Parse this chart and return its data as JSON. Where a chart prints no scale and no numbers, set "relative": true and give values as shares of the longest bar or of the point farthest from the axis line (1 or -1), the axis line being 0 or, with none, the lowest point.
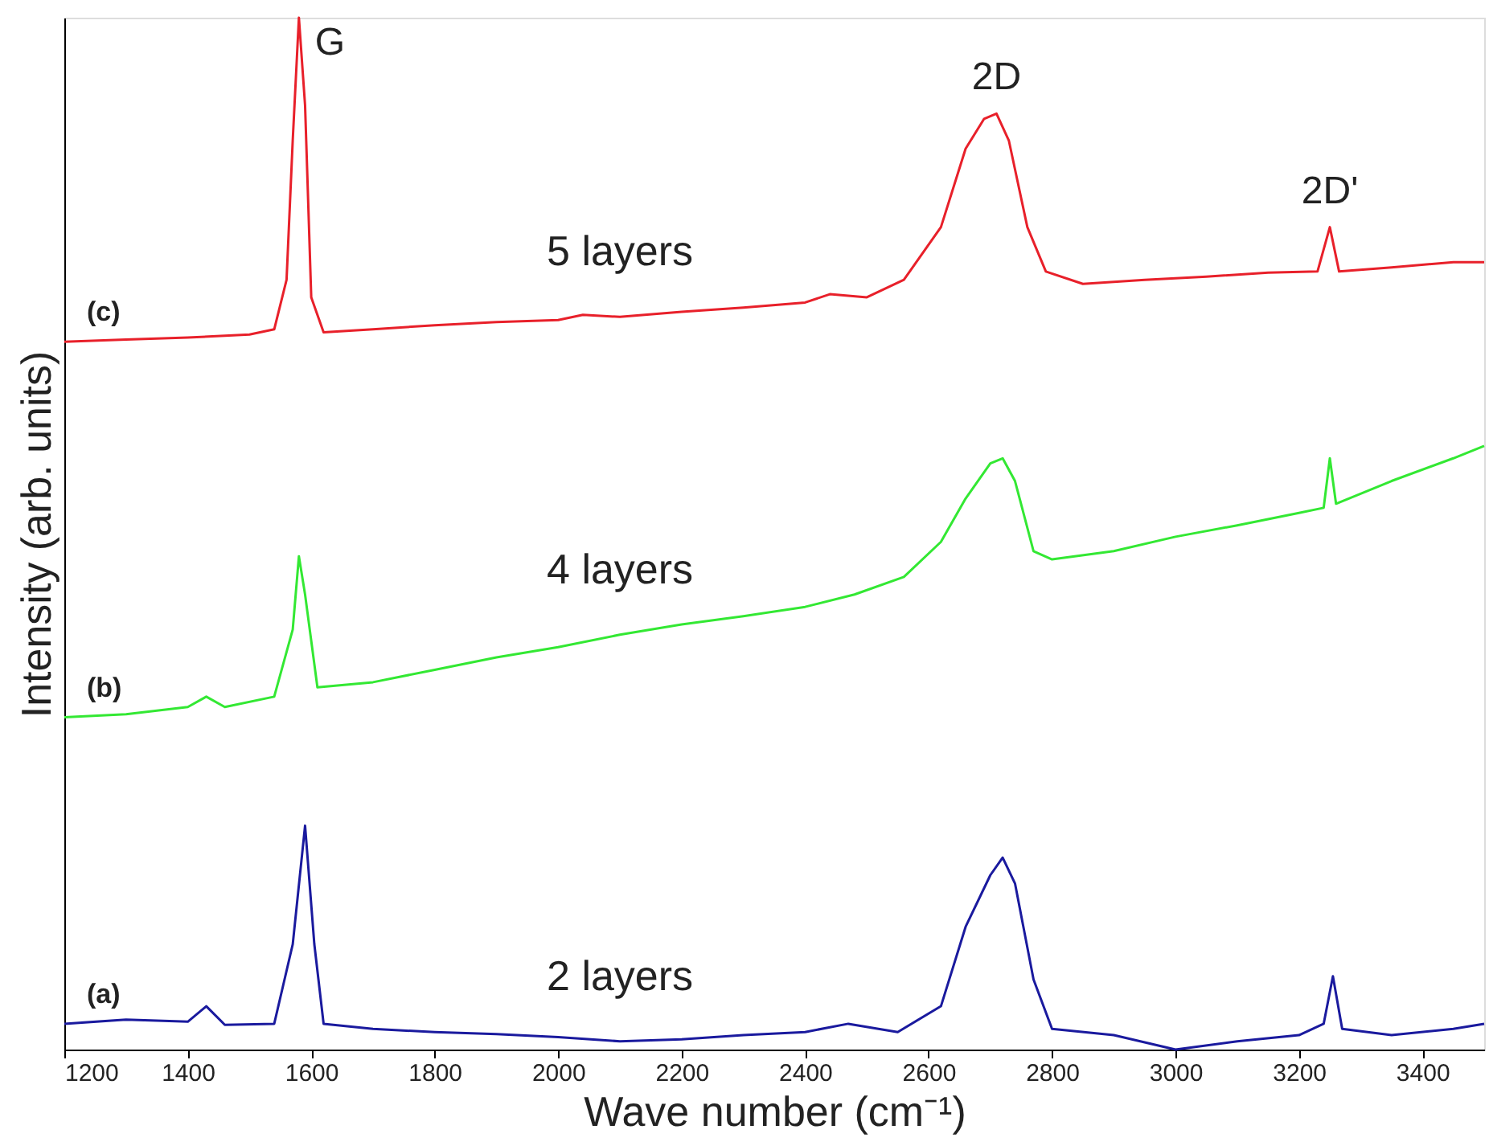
{
  "chart_data": {
    "type": "line",
    "relative": true,
    "xlabel": "Wave number (cm⁻¹)",
    "ylabel": "Intensity (arb. units)",
    "xlim": [
      1200,
      3500
    ],
    "xticks": [
      1200,
      1400,
      1600,
      1800,
      2000,
      2200,
      2400,
      2600,
      2800,
      3000,
      3200,
      3400
    ],
    "grid": false,
    "legend": false,
    "tick_labels": "x",
    "line_style": "solid",
    "marker": "none",
    "series": [
      {
        "name": "5 layers",
        "color": "#e8202a",
        "x": [
          1200,
          1300,
          1400,
          1500,
          1540,
          1560,
          1570,
          1580,
          1590,
          1600,
          1620,
          1700,
          1800,
          1900,
          2000,
          2040,
          2100,
          2200,
          2300,
          2400,
          2440,
          2500,
          2560,
          2620,
          2660,
          2690,
          2710,
          2730,
          2760,
          2790,
          2850,
          2950,
          3050,
          3150,
          3230,
          3250,
          3265,
          3350,
          3450,
          3500
        ],
        "values": [
          0.686,
          0.688,
          0.69,
          0.693,
          0.698,
          0.746,
          0.881,
          1.0,
          0.915,
          0.729,
          0.695,
          0.698,
          0.702,
          0.705,
          0.707,
          0.712,
          0.71,
          0.715,
          0.719,
          0.724,
          0.732,
          0.729,
          0.746,
          0.797,
          0.873,
          0.902,
          0.907,
          0.881,
          0.797,
          0.754,
          0.742,
          0.746,
          0.749,
          0.753,
          0.754,
          0.797,
          0.754,
          0.758,
          0.763,
          0.763
        ]
      },
      {
        "name": "4 layers",
        "color": "#33e833",
        "x": [
          1200,
          1300,
          1400,
          1430,
          1460,
          1540,
          1570,
          1580,
          1590,
          1610,
          1700,
          1800,
          1900,
          2000,
          2100,
          2200,
          2300,
          2400,
          2480,
          2560,
          2620,
          2660,
          2700,
          2720,
          2740,
          2770,
          2800,
          2900,
          3000,
          3100,
          3200,
          3240,
          3250,
          3260,
          3350,
          3450,
          3500
        ],
        "values": [
          0.322,
          0.325,
          0.332,
          0.342,
          0.332,
          0.342,
          0.407,
          0.478,
          0.441,
          0.351,
          0.356,
          0.368,
          0.38,
          0.39,
          0.402,
          0.412,
          0.42,
          0.429,
          0.441,
          0.458,
          0.492,
          0.534,
          0.568,
          0.573,
          0.551,
          0.483,
          0.475,
          0.483,
          0.497,
          0.508,
          0.52,
          0.525,
          0.573,
          0.529,
          0.551,
          0.573,
          0.585
        ]
      },
      {
        "name": "2 layers",
        "color": "#1a1a9e",
        "x": [
          1200,
          1300,
          1400,
          1430,
          1460,
          1540,
          1570,
          1590,
          1605,
          1620,
          1700,
          1800,
          1900,
          2000,
          2100,
          2200,
          2300,
          2400,
          2470,
          2550,
          2620,
          2660,
          2700,
          2720,
          2740,
          2770,
          2800,
          2900,
          3000,
          3100,
          3200,
          3240,
          3255,
          3270,
          3350,
          3450,
          3500
        ],
        "values": [
          0.025,
          0.029,
          0.027,
          0.042,
          0.024,
          0.025,
          0.102,
          0.217,
          0.102,
          0.025,
          0.02,
          0.017,
          0.015,
          0.012,
          0.008,
          0.01,
          0.014,
          0.017,
          0.025,
          0.017,
          0.042,
          0.119,
          0.169,
          0.186,
          0.161,
          0.068,
          0.02,
          0.014,
          0.0,
          0.008,
          0.014,
          0.025,
          0.071,
          0.02,
          0.014,
          0.02,
          0.025
        ]
      }
    ],
    "annotations": [
      {
        "text": "G",
        "x": 1580,
        "y": 1.0
      },
      {
        "text": "2D",
        "x": 2710,
        "y": 0.907
      },
      {
        "text": "2D'",
        "x": 3250,
        "y": 0.797
      },
      {
        "text": "(c)",
        "x": 1200,
        "y": 0.686
      },
      {
        "text": "(b)",
        "x": 1200,
        "y": 0.322
      },
      {
        "text": "(a)",
        "x": 1200,
        "y": 0.025
      }
    ]
  }
}
